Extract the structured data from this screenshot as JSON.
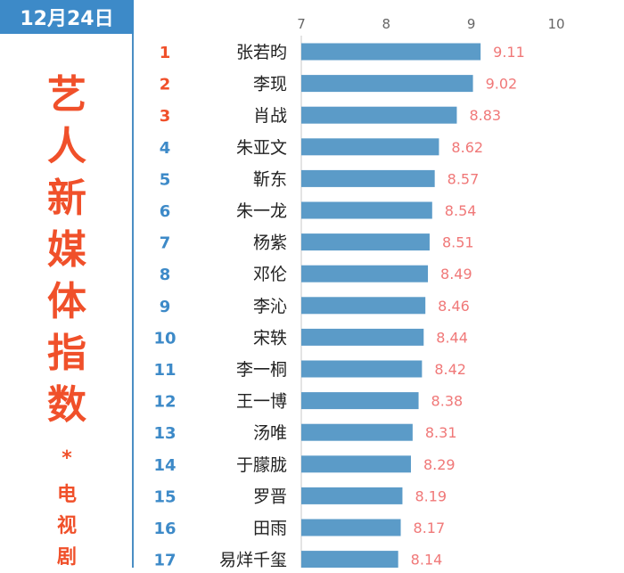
{
  "header": {
    "date": "12月24日",
    "title_chars": [
      "艺",
      "人",
      "新",
      "媒",
      "体",
      "指",
      "数"
    ],
    "asterisk": "*",
    "subtitle_chars": [
      "电",
      "视",
      "剧"
    ]
  },
  "colors": {
    "bar": "#5b9bc8",
    "value_label": "#f07878",
    "rank_top": "#f0502a",
    "rank_other": "#3d8ac8",
    "axis_tick": "#666666",
    "name": "#222222"
  },
  "chart_data": {
    "type": "bar",
    "orientation": "horizontal",
    "xlim": [
      7,
      10
    ],
    "xticks": [
      "7",
      "8",
      "9",
      "10"
    ],
    "grid": false,
    "ranks": [
      "1",
      "2",
      "3",
      "4",
      "5",
      "6",
      "7",
      "8",
      "9",
      "10",
      "11",
      "12",
      "13",
      "14",
      "15",
      "16",
      "17"
    ],
    "categories": [
      "张若昀",
      "李现",
      "肖战",
      "朱亚文",
      "靳东",
      "朱一龙",
      "杨紫",
      "邓伦",
      "李沁",
      "宋轶",
      "李一桐",
      "王一博",
      "汤唯",
      "于朦胧",
      "罗晋",
      "田雨",
      "易烊千玺"
    ],
    "values": [
      9.11,
      9.02,
      8.83,
      8.62,
      8.57,
      8.54,
      8.51,
      8.49,
      8.46,
      8.44,
      8.42,
      8.38,
      8.31,
      8.29,
      8.19,
      8.17,
      8.14
    ],
    "value_labels": [
      "9.11",
      "9.02",
      "8.83",
      "8.62",
      "8.57",
      "8.54",
      "8.51",
      "8.49",
      "8.46",
      "8.44",
      "8.42",
      "8.38",
      "8.31",
      "8.29",
      "8.19",
      "8.17",
      "8.14"
    ]
  }
}
